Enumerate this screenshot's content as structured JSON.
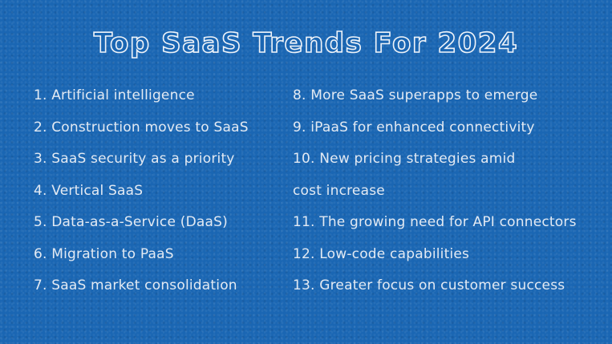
{
  "title": "Top SaaS Trends For 2024",
  "left_items": [
    "1. Artificial intelligence",
    "2. Construction moves to SaaS",
    "3. SaaS security as a priority",
    "4. Vertical SaaS",
    "5. Data-as-a-Service (DaaS)",
    "6. Migration to PaaS",
    "7. SaaS market consolidation"
  ],
  "right_items": [
    "8. More SaaS superapps to emerge",
    "9. iPaaS for enhanced connectivity",
    "10. New pricing strategies amid",
    "cost increase",
    "11. The growing need for API connectors",
    "12. Low-code capabilities",
    "13. Greater focus on customer success"
  ],
  "colors": {
    "background": "#1a66b3",
    "text": "#e3eaf3"
  }
}
